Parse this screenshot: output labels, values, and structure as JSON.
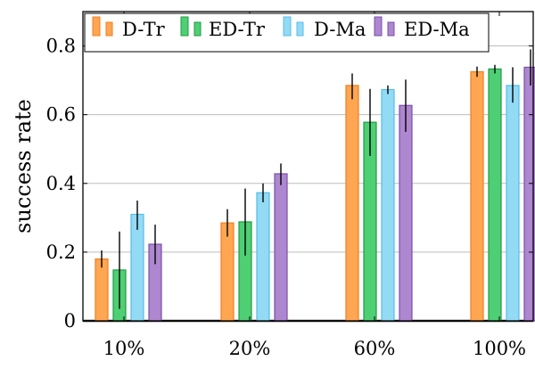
{
  "chart_data": {
    "type": "bar",
    "title": "",
    "xlabel": "",
    "ylabel": "success rate",
    "ylim": [
      0,
      0.9
    ],
    "yticks": [
      0,
      0.2,
      0.4,
      0.6,
      0.8
    ],
    "ytick_labels": [
      "0",
      "0.2",
      "0.4",
      "0.6",
      "0.8"
    ],
    "grid": "horizontal",
    "legend_position": "top-left",
    "categories": [
      "10%",
      "20%",
      "60%",
      "100%"
    ],
    "series": [
      {
        "name": "D-Tr",
        "color": "#ffa652",
        "edge": "#f07f20",
        "values": [
          0.18,
          0.285,
          0.685,
          0.725
        ],
        "error_low": [
          0.155,
          0.245,
          0.645,
          0.71
        ],
        "error_high": [
          0.205,
          0.325,
          0.72,
          0.74
        ]
      },
      {
        "name": "ED-Tr",
        "color": "#4fcf73",
        "edge": "#1f9a45",
        "values": [
          0.148,
          0.288,
          0.578,
          0.733
        ],
        "error_low": [
          0.035,
          0.19,
          0.48,
          0.72
        ],
        "error_high": [
          0.26,
          0.385,
          0.675,
          0.745
        ]
      },
      {
        "name": "D-Ma",
        "color": "#93daf5",
        "edge": "#55bde6",
        "values": [
          0.31,
          0.373,
          0.673,
          0.685
        ],
        "error_low": [
          0.265,
          0.345,
          0.66,
          0.635
        ],
        "error_high": [
          0.35,
          0.4,
          0.685,
          0.738
        ]
      },
      {
        "name": "ED-Ma",
        "color": "#ad87cf",
        "edge": "#7b4fa8",
        "values": [
          0.223,
          0.428,
          0.627,
          0.738
        ],
        "error_low": [
          0.165,
          0.395,
          0.55,
          0.685
        ],
        "error_high": [
          0.28,
          0.458,
          0.702,
          0.79
        ]
      }
    ]
  }
}
